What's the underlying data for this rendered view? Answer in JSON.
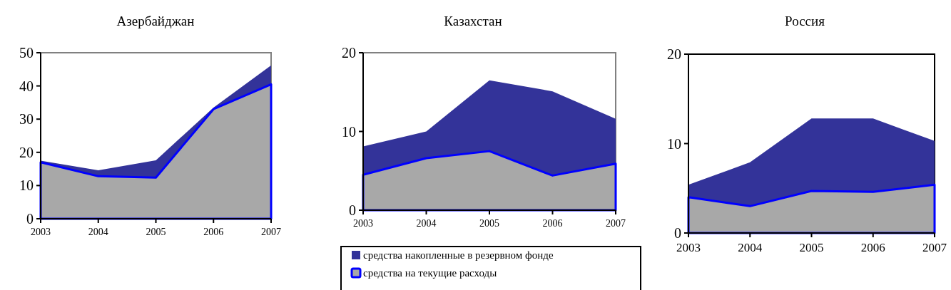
{
  "chart_data": [
    {
      "type": "area",
      "stacked": true,
      "title": "Азербайджан",
      "categories": [
        "2003",
        "2004",
        "2005",
        "2006",
        "2007"
      ],
      "ylim": [
        0,
        50
      ],
      "yticks": [
        0,
        10,
        20,
        30,
        40,
        50
      ],
      "legend": false,
      "series": [
        {
          "color": "#a8a8a8",
          "values": [
            17,
            12.8,
            12.4,
            33,
            40.5
          ]
        },
        {
          "color": "#333399",
          "values": [
            0.5,
            1.8,
            5.2,
            0.5,
            5.7
          ]
        }
      ]
    },
    {
      "type": "area",
      "stacked": true,
      "title": "Казахстан",
      "categories": [
        "2003",
        "2004",
        "2005",
        "2006",
        "2007"
      ],
      "ylim": [
        0,
        20
      ],
      "yticks": [
        0,
        10,
        20
      ],
      "legend": "bottom",
      "series": [
        {
          "name": "средства на текущие расходы",
          "color": "#a8a8a8",
          "values": [
            4.5,
            6.6,
            7.5,
            4.4,
            5.9
          ]
        },
        {
          "name": "средства накопленные в резервном фонде",
          "color": "#333399",
          "values": [
            3.6,
            3.4,
            9.0,
            10.7,
            5.7
          ]
        }
      ]
    },
    {
      "type": "area",
      "stacked": true,
      "title": "Россия",
      "categories": [
        "2003",
        "2004",
        "2005",
        "2006",
        "2007"
      ],
      "ylim": [
        0,
        20
      ],
      "yticks": [
        0,
        10,
        20
      ],
      "legend": false,
      "series": [
        {
          "color": "#a8a8a8",
          "values": [
            4.0,
            3.0,
            4.7,
            4.6,
            5.4
          ]
        },
        {
          "color": "#333399",
          "values": [
            1.4,
            4.9,
            8.1,
            8.2,
            4.9
          ]
        }
      ]
    }
  ]
}
